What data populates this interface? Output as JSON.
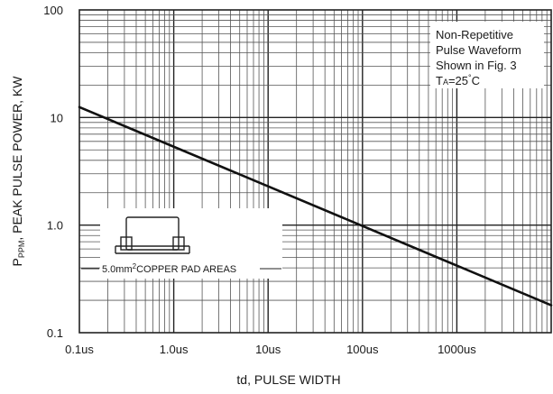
{
  "chart_data": {
    "type": "line",
    "title": "",
    "xlabel": "td, PULSE WIDTH",
    "ylabel": {
      "prefix": "P",
      "subscript": "PPM",
      "rest": ", PEAK PULSE POWER, KW"
    },
    "x_scale": "log",
    "y_scale": "log",
    "x_unit": "us",
    "y_unit": "KW",
    "xlim": [
      0.1,
      10000
    ],
    "ylim": [
      0.1,
      100
    ],
    "x_ticks": [
      {
        "value": 0.1,
        "label": "0.1us"
      },
      {
        "value": 1,
        "label": "1.0us"
      },
      {
        "value": 10,
        "label": "10us"
      },
      {
        "value": 100,
        "label": "100us"
      },
      {
        "value": 1000,
        "label": "1000us"
      }
    ],
    "y_ticks": [
      {
        "value": 0.1,
        "label": "0.1"
      },
      {
        "value": 1,
        "label": "1.0"
      },
      {
        "value": 10,
        "label": "10"
      },
      {
        "value": 100,
        "label": "100"
      }
    ],
    "grid": true,
    "series": [
      {
        "x": [
          0.1,
          10000
        ],
        "y": [
          12.5,
          0.18
        ],
        "color": "#111111"
      }
    ],
    "annotations": {
      "conditions": {
        "lines": [
          "Non-Repetitive",
          "Pulse Waveform",
          "Shown in Fig. 3"
        ],
        "temp_prefix": "T",
        "temp_subscript": "A",
        "temp_value": "=25",
        "temp_degree": "°",
        "temp_unit": "C"
      },
      "pad": {
        "prefix": "5.0mm",
        "superscript": "2",
        "rest": "COPPER PAD AREAS"
      }
    }
  }
}
